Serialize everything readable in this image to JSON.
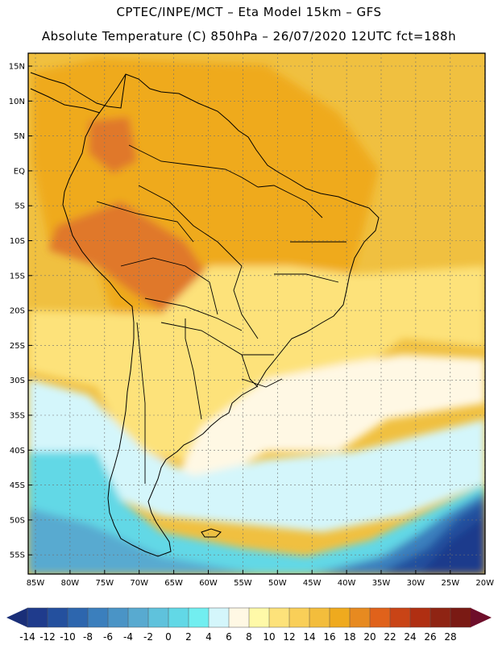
{
  "header": {
    "line1": "CPTEC/INPE/MCT –   Eta Model 15km – GFS",
    "line2": "Absolute Temperature (C) 850hPa – 26/07/2020 12UTC fct=188h"
  },
  "axes": {
    "lat_labels": [
      "15N",
      "10N",
      "5N",
      "EQ",
      "5S",
      "10S",
      "15S",
      "20S",
      "25S",
      "30S",
      "35S",
      "40S",
      "45S",
      "50S",
      "55S"
    ],
    "lon_labels": [
      "85W",
      "80W",
      "75W",
      "70W",
      "65W",
      "60W",
      "55W",
      "50W",
      "45W",
      "40W",
      "35W",
      "30W",
      "25W",
      "20W"
    ]
  },
  "colorbar": {
    "labels": [
      "-14",
      "-12",
      "-10",
      "-8",
      "-6",
      "-4",
      "-2",
      "0",
      "2",
      "4",
      "6",
      "8",
      "10",
      "12",
      "14",
      "16",
      "18",
      "20",
      "22",
      "24",
      "26",
      "28"
    ],
    "colors": [
      "#1f3b8c",
      "#24509e",
      "#2d66ae",
      "#3b7fbd",
      "#4a94c6",
      "#58aad0",
      "#5fc2dc",
      "#62d8e6",
      "#72eef0",
      "#d4f6fb",
      "#fff8e4",
      "#fff9a8",
      "#fde27a",
      "#f9cf58",
      "#f3bd3c",
      "#efaa1e",
      "#e78a20",
      "#e0621b",
      "#c94416",
      "#b02f12",
      "#8f2413",
      "#7a1a14"
    ],
    "under_color": "#1a2f78",
    "over_color": "#6e0e2a"
  },
  "field_colors": {
    "ocean_north": "#f0c040",
    "continent": "#efaa1e",
    "hot_core": "#e0782a",
    "warm_south": "#f3bd3c",
    "cool_band": "#fde27a",
    "pale": "#fff8e4",
    "cyan_light": "#d4f6fb",
    "cyan": "#62d8e6",
    "cyan_mid": "#58aad0",
    "blue_mid": "#3b7fbd",
    "blue_deep": "#24509e",
    "blue_darkest": "#1f3b8c"
  }
}
